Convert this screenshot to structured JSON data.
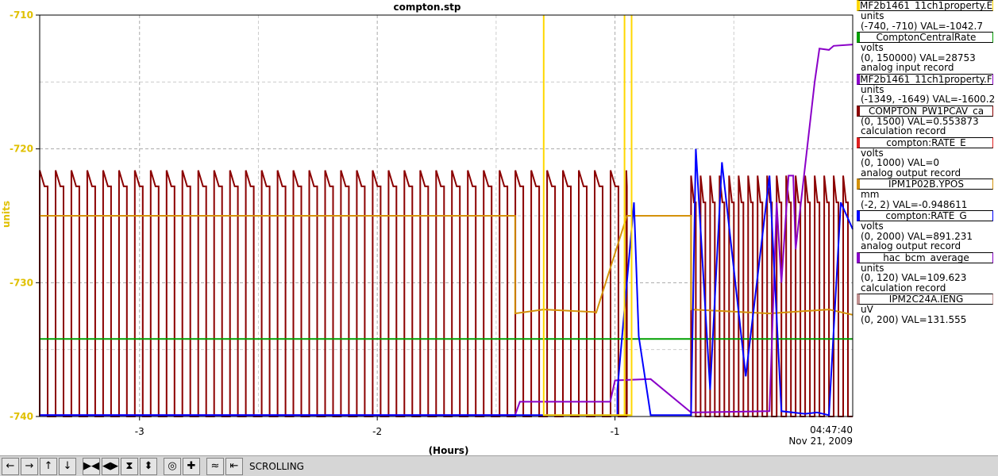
{
  "chart_data": {
    "type": "line",
    "title": "compton.stp",
    "xlabel": "(Hours)",
    "ylabel": "units",
    "xlim": [
      -3.42,
      0
    ],
    "ylim": [
      -740,
      -710
    ],
    "x_ticks": [
      "-3",
      "-2",
      "-1"
    ],
    "x_tick_values": [
      -3,
      -2,
      -1
    ],
    "y_ticks": [
      "-710",
      "-720",
      "-730",
      "-740"
    ],
    "y_tick_values": [
      -710,
      -720,
      -730,
      -740
    ],
    "time_label": "04:47:40",
    "date_label": "Nov 21, 2009",
    "grid": true,
    "series": [
      {
        "name": "COMPTON_PW1PCAV_ca",
        "color": "#8b0000",
        "style": "pulse",
        "pulses_from": -3.42,
        "pulses_to": -0.95,
        "period": 0.0667,
        "high": -721.6,
        "mid": -722.8,
        "low": -740
      },
      {
        "name": "COMPTON_PW1PCAV_ca",
        "color": "#8b0000",
        "style": "pulse",
        "pulses_from": -0.68,
        "pulses_to": 0,
        "period": 0.04,
        "high": -722,
        "mid": -724,
        "low": -740
      },
      {
        "name": "IPM1P02B.YPOS",
        "color": "#d4920a",
        "x": [
          -3.42,
          -1.42,
          -1.42,
          -1.3,
          -1.08,
          -1.08,
          -0.95,
          -0.92,
          -0.68,
          -0.68,
          -0.35,
          -0.1,
          0
        ],
        "y": [
          -725,
          -725,
          -732.3,
          -732,
          -732.2,
          -732.3,
          -725,
          -725,
          -725,
          -732,
          -732.3,
          -732,
          -732.4
        ]
      },
      {
        "name": "ComptonCentralRate",
        "color": "#00a000",
        "x": [
          -3.42,
          0
        ],
        "y": [
          -734.2,
          -734.2
        ]
      },
      {
        "name": "hac_bcm_average",
        "color": "#8a00c8",
        "x": [
          -3.42,
          -1.42,
          -1.4,
          -1.02,
          -1.0,
          -0.85,
          -0.68,
          -0.35,
          -0.32,
          -0.3,
          -0.27,
          -0.25,
          -0.24,
          -0.16,
          -0.14,
          -0.1,
          -0.08,
          0
        ],
        "y": [
          -739.9,
          -739.9,
          -738.9,
          -738.9,
          -737.3,
          -737.2,
          -739.7,
          -739.6,
          -724,
          -730,
          -722,
          -722,
          -727.5,
          -715,
          -712.5,
          -712.6,
          -712.3,
          -712.2
        ]
      },
      {
        "name": "compton:RATE_G",
        "color": "#0000ff",
        "x": [
          -3.42,
          -0.99,
          -0.99,
          -0.92,
          -0.9,
          -0.85,
          -0.68,
          -0.66,
          -0.6,
          -0.55,
          -0.45,
          -0.35,
          -0.3,
          -0.2,
          -0.15,
          -0.1,
          -0.05,
          0
        ],
        "y": [
          -739.9,
          -739.9,
          -738,
          -724,
          -734,
          -739.9,
          -739.9,
          -720,
          -738,
          -721,
          -737,
          -722,
          -739.6,
          -739.8,
          -739.7,
          -739.9,
          -724,
          -726
        ]
      },
      {
        "name": "MF2b1461_11ch1property.E",
        "color": "#ffd700",
        "x": [
          -1.3,
          -1.3,
          -1.3,
          -0.96,
          -0.96,
          -0.96,
          -0.93,
          -0.93,
          -0.93
        ],
        "y": [
          -739.9,
          -710,
          -739.9,
          -739.9,
          -710,
          -739.9,
          -739.9,
          -710,
          -739.9
        ]
      }
    ]
  },
  "legend": [
    {
      "label": "MF2b1461_11ch1property.E",
      "color": "#ffd700",
      "lines": [
        "units",
        "(-740, -710) VAL=-1042.7"
      ]
    },
    {
      "label": "ComptonCentralRate",
      "color": "#00a000",
      "lines": [
        "volts",
        "(0, 150000) VAL=28753",
        "analog input record"
      ]
    },
    {
      "label": "MF2b1461_11ch1property.F",
      "color": "#8a00c8",
      "lines": [
        "units",
        "(-1349, -1649) VAL=-1600.2"
      ]
    },
    {
      "label": "COMPTON_PW1PCAV_ca",
      "color": "#8b0000",
      "lines": [
        "(0, 1500) VAL=0.553873",
        "calculation record"
      ]
    },
    {
      "label": "compton:RATE_E",
      "color": "#e02020",
      "lines": [
        "volts",
        "(0, 1000) VAL=0",
        "analog output record"
      ]
    },
    {
      "label": "IPM1P02B.YPOS",
      "color": "#d4920a",
      "lines": [
        "mm",
        "(-2, 2) VAL=-0.948611"
      ]
    },
    {
      "label": "compton:RATE_G",
      "color": "#0000ff",
      "lines": [
        "volts",
        "(0, 2000) VAL=891.231",
        "analog output record"
      ]
    },
    {
      "label": "hac_bcm_average",
      "color": "#8a00c8",
      "lines": [
        "units",
        "(0, 120) VAL=109.623",
        "calculation record"
      ]
    },
    {
      "label": "IPM2C24A.IENG",
      "color": "#c09090",
      "lines": [
        "uV",
        "(0, 200) VAL=131.555"
      ]
    }
  ],
  "toolbar": {
    "buttons": [
      {
        "name": "scroll-left-button",
        "icon": "arrow-left-icon",
        "glyph": "←"
      },
      {
        "name": "scroll-right-button",
        "icon": "arrow-right-icon",
        "glyph": "→"
      },
      {
        "name": "scroll-up-button",
        "icon": "arrow-up-icon",
        "glyph": "↑"
      },
      {
        "name": "scroll-down-button",
        "icon": "arrow-down-icon",
        "glyph": "↓"
      },
      {
        "name": "zoom-in-x-button",
        "icon": "zoom-in-x-icon",
        "glyph": "▶◀"
      },
      {
        "name": "zoom-out-x-button",
        "icon": "zoom-out-x-icon",
        "glyph": "◀▶"
      },
      {
        "name": "zoom-in-y-button",
        "icon": "zoom-in-y-icon",
        "glyph": "⧗"
      },
      {
        "name": "zoom-out-y-button",
        "icon": "zoom-out-y-icon",
        "glyph": "⬍"
      },
      {
        "name": "autoscale-button",
        "icon": "autoscale-icon",
        "glyph": "◎"
      },
      {
        "name": "add-button",
        "icon": "plus-icon",
        "glyph": "✚"
      },
      {
        "name": "stagger-button",
        "icon": "stagger-icon",
        "glyph": "≈"
      },
      {
        "name": "pan-back-button",
        "icon": "pan-back-icon",
        "glyph": "⇤"
      }
    ],
    "mode": "SCROLLING"
  }
}
